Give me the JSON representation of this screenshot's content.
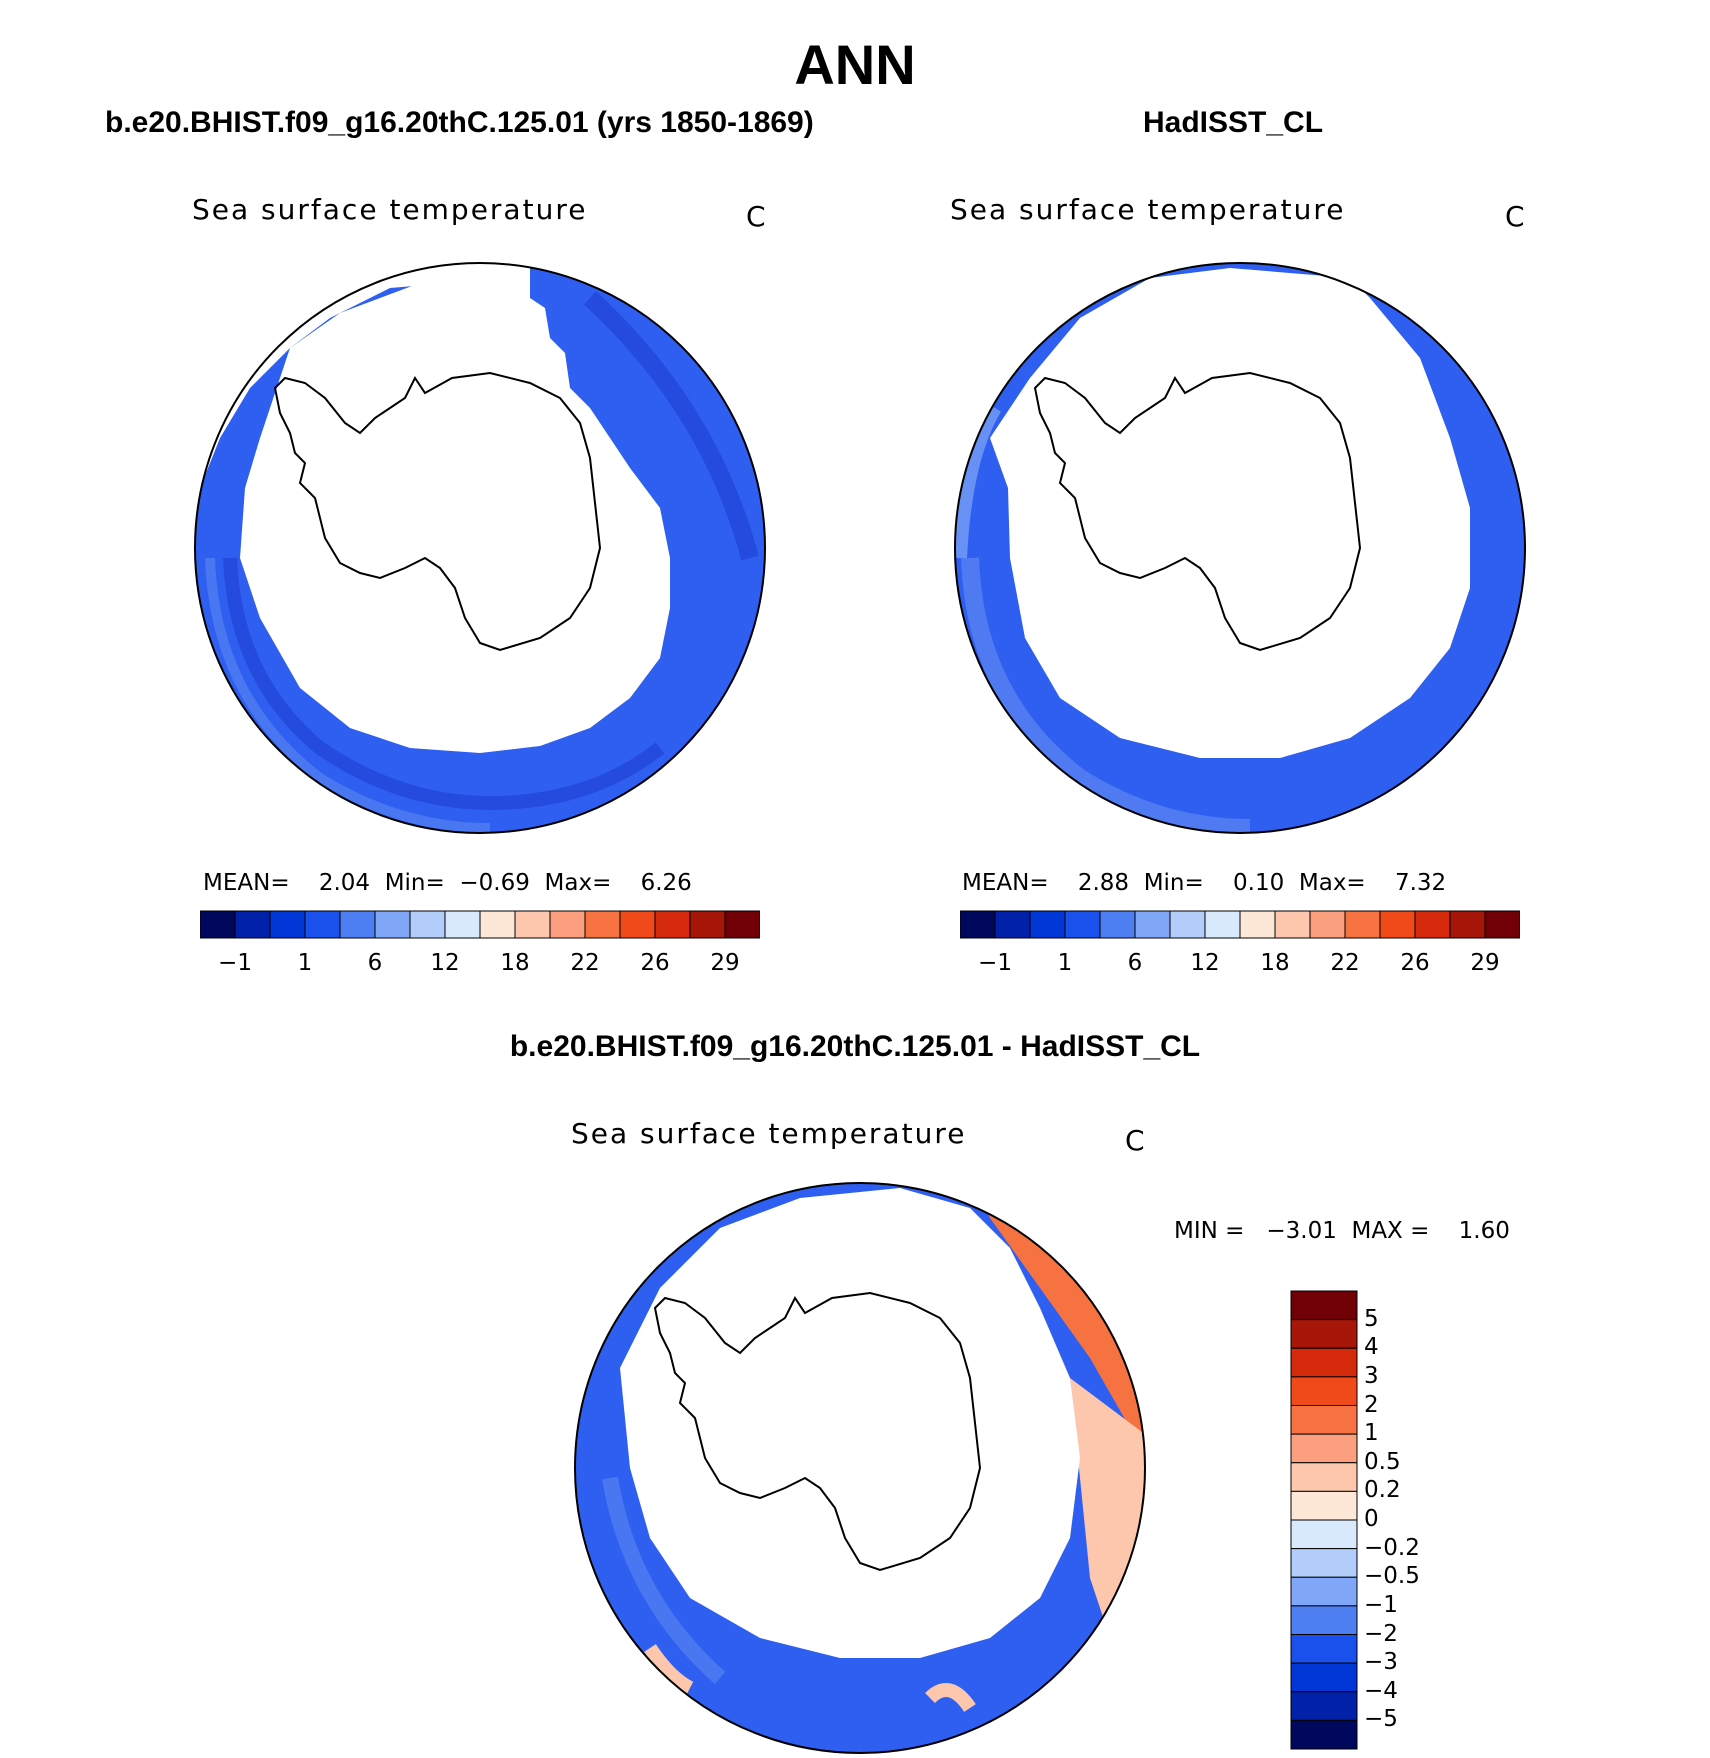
{
  "season": "ANN",
  "panels": {
    "model": {
      "case_title": "b.e20.BHIST.f09_g16.20thC.125.01 (yrs 1850-1869)",
      "field_label": "Sea surface temperature",
      "units": "C",
      "stats": {
        "mean_label": "MEAN=",
        "mean": "2.04",
        "min_label": "Min=",
        "min": "−0.69",
        "max_label": "Max=",
        "max": "6.26"
      }
    },
    "obs": {
      "case_title": "HadISST_CL",
      "field_label": "Sea surface temperature",
      "units": "C",
      "stats": {
        "mean_label": "MEAN=",
        "mean": "2.88",
        "min_label": "Min=",
        "min": "0.10",
        "max_label": "Max=",
        "max": "7.32"
      }
    },
    "diff": {
      "case_title": "b.e20.BHIST.f09_g16.20thC.125.01 - HadISST_CL",
      "field_label": "Sea surface temperature",
      "units": "C",
      "stats": {
        "min_label": "MIN =",
        "min": "−3.01",
        "max_label": "MAX =",
        "max": "1.60"
      }
    }
  },
  "abs_colorbar": {
    "colors": [
      "#00085e",
      "#0021a8",
      "#0035d6",
      "#1a50eb",
      "#4d7ef2",
      "#80a7f7",
      "#b3cdfa",
      "#d9e9fc",
      "#fde8d8",
      "#fcc7ad",
      "#fb9f7e",
      "#f77241",
      "#f04a1a",
      "#d42a0b",
      "#a6170a",
      "#700006"
    ],
    "tick_labels": [
      "−1",
      "1",
      "6",
      "12",
      "18",
      "22",
      "26",
      "29"
    ]
  },
  "diff_colorbar": {
    "colors": [
      "#00085e",
      "#0021a8",
      "#0035d6",
      "#1a50eb",
      "#4d7ef2",
      "#80a7f7",
      "#b3cdfa",
      "#d9e9fc",
      "#fde8d8",
      "#fcc7ad",
      "#fb9f7e",
      "#f77241",
      "#f04a1a",
      "#d42a0b",
      "#a6170a",
      "#700006"
    ],
    "tick_labels": [
      "5",
      "4",
      "3",
      "2",
      "1",
      "0.5",
      "0.2",
      "0",
      "−0.2",
      "−0.5",
      "−1",
      "−2",
      "−3",
      "−4",
      "−5"
    ]
  },
  "map": {
    "projection": "south-polar-stereographic",
    "ocean_color": "#2f5ff0",
    "ocean_color_light": "#5c86f2",
    "diff_warm_color": "#f77241",
    "diff_warm_light": "#fcc7ad"
  }
}
